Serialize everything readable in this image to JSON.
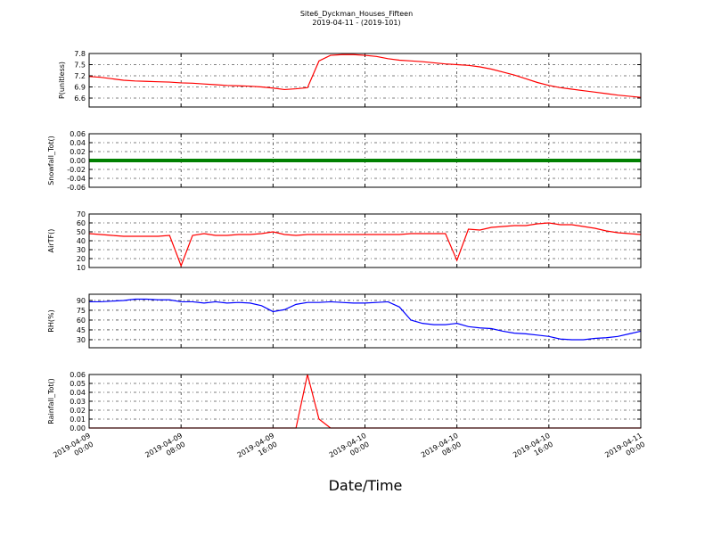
{
  "chart_data": {
    "type": "line",
    "title": "Site6_Dyckman_Houses_Fifteen",
    "subtitle": "2019-04-11 - (2019-101)",
    "xlabel": "Date/Time",
    "xlim": [
      "2019-04-09 00:00",
      "2019-04-11 00:00"
    ],
    "xticks": [
      "2019-04-09 00:00",
      "2019-04-09 08:00",
      "2019-04-09 16:00",
      "2019-04-10 00:00",
      "2019-04-10 08:00",
      "2019-04-10 16:00",
      "2019-04-11 00:00"
    ],
    "grid": true,
    "x": [
      "2019-04-09 00:00",
      "2019-04-09 01:00",
      "2019-04-09 02:00",
      "2019-04-09 03:00",
      "2019-04-09 04:00",
      "2019-04-09 05:00",
      "2019-04-09 06:00",
      "2019-04-09 07:00",
      "2019-04-09 08:00",
      "2019-04-09 09:00",
      "2019-04-09 10:00",
      "2019-04-09 11:00",
      "2019-04-09 12:00",
      "2019-04-09 13:00",
      "2019-04-09 14:00",
      "2019-04-09 15:00",
      "2019-04-09 16:00",
      "2019-04-09 17:00",
      "2019-04-09 18:00",
      "2019-04-09 19:00",
      "2019-04-09 20:00",
      "2019-04-09 21:00",
      "2019-04-09 22:00",
      "2019-04-09 23:00",
      "2019-04-10 00:00",
      "2019-04-10 01:00",
      "2019-04-10 02:00",
      "2019-04-10 03:00",
      "2019-04-10 04:00",
      "2019-04-10 05:00",
      "2019-04-10 06:00",
      "2019-04-10 07:00",
      "2019-04-10 08:00",
      "2019-04-10 09:00",
      "2019-04-10 10:00",
      "2019-04-10 11:00",
      "2019-04-10 12:00",
      "2019-04-10 13:00",
      "2019-04-10 14:00",
      "2019-04-10 15:00",
      "2019-04-10 16:00",
      "2019-04-10 17:00",
      "2019-04-10 18:00",
      "2019-04-10 19:00",
      "2019-04-10 20:00",
      "2019-04-10 21:00",
      "2019-04-10 22:00",
      "2019-04-10 23:00",
      "2019-04-11 00:00"
    ],
    "panels": [
      {
        "ylabel": "P(unitless)",
        "ylim": [
          6.36,
          7.8
        ],
        "yticks": [
          6.6,
          6.9,
          7.2,
          7.5,
          7.8
        ],
        "series": [
          {
            "color": "#ff0000",
            "values": [
              7.18,
              7.16,
              7.12,
              7.08,
              7.06,
              7.05,
              7.04,
              7.03,
              7.01,
              7.0,
              6.98,
              6.96,
              6.94,
              6.93,
              6.92,
              6.9,
              6.87,
              6.83,
              6.85,
              6.88,
              7.6,
              7.75,
              7.77,
              7.77,
              7.75,
              7.72,
              7.66,
              7.62,
              7.6,
              7.58,
              7.55,
              7.52,
              7.5,
              7.48,
              7.44,
              7.38,
              7.3,
              7.22,
              7.12,
              7.02,
              6.94,
              6.88,
              6.84,
              6.8,
              6.76,
              6.72,
              6.68,
              6.65,
              6.62
            ]
          }
        ]
      },
      {
        "ylabel": "Snowfall_Tot()",
        "ylim": [
          -0.06,
          0.06
        ],
        "yticks": [
          -0.06,
          -0.04,
          -0.02,
          {
            "value": 0,
            "label": "0.00"
          },
          0.02,
          0.04,
          0.06
        ],
        "series": [
          {
            "color": "#008000",
            "values": [
              0,
              0,
              0,
              0,
              0,
              0,
              0,
              0,
              0,
              0,
              0,
              0,
              0,
              0,
              0,
              0,
              0,
              0,
              0,
              0,
              0,
              0,
              0,
              0,
              0,
              0,
              0,
              0,
              0,
              0,
              0,
              0,
              0,
              0,
              0,
              0,
              0,
              0,
              0,
              0,
              0,
              0,
              0,
              0,
              0,
              0,
              0,
              0,
              0
            ]
          }
        ]
      },
      {
        "ylabel": "AirTF()",
        "ylim": [
          10,
          70
        ],
        "yticks": [
          10,
          20,
          30,
          40,
          50,
          60,
          70
        ],
        "series": [
          {
            "color": "#ff0000",
            "values": [
              48,
              47,
              46,
              45,
              45,
              45,
              45,
              46,
              12,
              46,
              48,
              46,
              46,
              47,
              47,
              48,
              50,
              47,
              46,
              47,
              47,
              47,
              47,
              47,
              47,
              47,
              47,
              47,
              48,
              48,
              48,
              48,
              18,
              53,
              52,
              55,
              56,
              57,
              57,
              59,
              60,
              58,
              58,
              56,
              54,
              51,
              49,
              48,
              47
            ]
          }
        ]
      },
      {
        "ylabel": "RH(%)",
        "ylim": [
          17.7,
          99.5
        ],
        "yticks": [
          30,
          45,
          60,
          75,
          90
        ],
        "series": [
          {
            "color": "#0000ff",
            "values": [
              88,
              88,
              89,
              90,
              92,
              92,
              91,
              91,
              88,
              88,
              86,
              88,
              86,
              87,
              86,
              82,
              73,
              76,
              84,
              87,
              87,
              88,
              87,
              86,
              86,
              87,
              88,
              80,
              60,
              55,
              53,
              53,
              55,
              50,
              48,
              47,
              43,
              40,
              39,
              37,
              35,
              31,
              30,
              30,
              32,
              33,
              35,
              39,
              43
            ]
          }
        ]
      },
      {
        "ylabel": "Rainfall_Tot()",
        "ylim": [
          0,
          0.06
        ],
        "yticks": [
          {
            "value": 0,
            "label": "0.00"
          },
          0.01,
          0.02,
          0.03,
          0.04,
          0.05,
          0.06
        ],
        "series": [
          {
            "color": "#ff0000",
            "values": [
              0,
              0,
              0,
              0,
              0,
              0,
              0,
              0,
              0,
              0,
              0,
              0,
              0,
              0,
              0,
              0,
              0,
              0,
              0,
              0.06,
              0.01,
              0,
              0,
              0,
              0,
              0,
              0,
              0,
              0,
              0,
              0,
              0,
              0,
              0,
              0,
              0,
              0,
              0,
              0,
              0,
              0,
              0,
              0,
              0,
              0,
              0,
              0,
              0,
              0
            ]
          }
        ]
      }
    ]
  }
}
